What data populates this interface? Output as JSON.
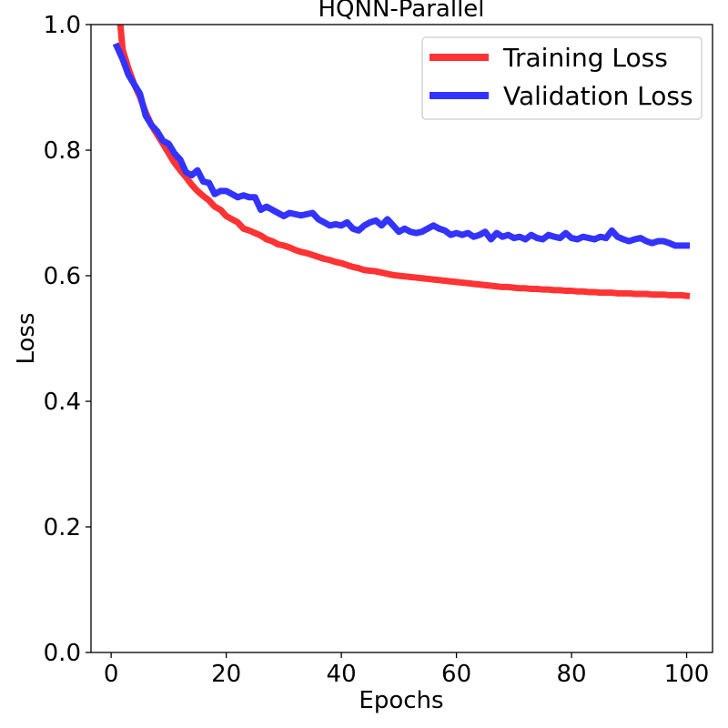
{
  "chart_data": {
    "type": "line",
    "title": "HQNN-Parallel",
    "xlabel": "Epochs",
    "ylabel": "Loss",
    "xlim": [
      -3.5,
      104.5
    ],
    "ylim": [
      0.0,
      1.0
    ],
    "xticks": [
      0,
      20,
      40,
      60,
      80,
      100
    ],
    "yticks": [
      0.0,
      0.2,
      0.4,
      0.6,
      0.8,
      1.0
    ],
    "grid": false,
    "legend_position": "top-right",
    "x": [
      1,
      2,
      3,
      4,
      5,
      6,
      7,
      8,
      9,
      10,
      11,
      12,
      13,
      14,
      15,
      16,
      17,
      18,
      19,
      20,
      21,
      22,
      23,
      24,
      25,
      26,
      27,
      28,
      29,
      30,
      31,
      32,
      33,
      34,
      35,
      36,
      37,
      38,
      39,
      40,
      41,
      42,
      43,
      44,
      45,
      46,
      47,
      48,
      49,
      50,
      51,
      52,
      53,
      54,
      55,
      56,
      57,
      58,
      59,
      60,
      61,
      62,
      63,
      64,
      65,
      66,
      67,
      68,
      69,
      70,
      71,
      72,
      73,
      74,
      75,
      76,
      77,
      78,
      79,
      80,
      81,
      82,
      83,
      84,
      85,
      86,
      87,
      88,
      89,
      90,
      91,
      92,
      93,
      94,
      95,
      96,
      97,
      98,
      99,
      100
    ],
    "series": [
      {
        "name": "Training Loss",
        "color": "#ff3333",
        "values": [
          1.06,
          0.96,
          0.93,
          0.905,
          0.885,
          0.86,
          0.84,
          0.825,
          0.81,
          0.795,
          0.78,
          0.768,
          0.757,
          0.745,
          0.735,
          0.727,
          0.72,
          0.71,
          0.705,
          0.695,
          0.69,
          0.685,
          0.675,
          0.672,
          0.668,
          0.664,
          0.658,
          0.655,
          0.65,
          0.648,
          0.645,
          0.641,
          0.638,
          0.636,
          0.633,
          0.63,
          0.627,
          0.625,
          0.622,
          0.62,
          0.617,
          0.614,
          0.612,
          0.609,
          0.608,
          0.607,
          0.605,
          0.603,
          0.601,
          0.6,
          0.599,
          0.598,
          0.597,
          0.596,
          0.595,
          0.594,
          0.593,
          0.592,
          0.591,
          0.59,
          0.589,
          0.588,
          0.587,
          0.586,
          0.585,
          0.584,
          0.583,
          0.582,
          0.582,
          0.581,
          0.58,
          0.58,
          0.579,
          0.579,
          0.578,
          0.578,
          0.577,
          0.577,
          0.576,
          0.576,
          0.575,
          0.575,
          0.574,
          0.574,
          0.573,
          0.573,
          0.573,
          0.572,
          0.572,
          0.572,
          0.571,
          0.571,
          0.571,
          0.57,
          0.57,
          0.57,
          0.569,
          0.569,
          0.569,
          0.568
        ]
      },
      {
        "name": "Validation Loss",
        "color": "#3333ff",
        "values": [
          0.965,
          0.945,
          0.92,
          0.905,
          0.89,
          0.855,
          0.84,
          0.83,
          0.815,
          0.81,
          0.795,
          0.785,
          0.765,
          0.76,
          0.768,
          0.75,
          0.748,
          0.73,
          0.735,
          0.735,
          0.73,
          0.725,
          0.728,
          0.725,
          0.725,
          0.705,
          0.71,
          0.705,
          0.7,
          0.695,
          0.7,
          0.698,
          0.696,
          0.698,
          0.7,
          0.69,
          0.685,
          0.68,
          0.682,
          0.68,
          0.685,
          0.675,
          0.672,
          0.68,
          0.685,
          0.688,
          0.68,
          0.69,
          0.68,
          0.67,
          0.675,
          0.67,
          0.668,
          0.67,
          0.675,
          0.68,
          0.675,
          0.672,
          0.665,
          0.668,
          0.665,
          0.668,
          0.662,
          0.665,
          0.67,
          0.658,
          0.668,
          0.662,
          0.665,
          0.66,
          0.662,
          0.658,
          0.665,
          0.66,
          0.658,
          0.665,
          0.662,
          0.66,
          0.668,
          0.66,
          0.658,
          0.662,
          0.66,
          0.658,
          0.662,
          0.66,
          0.672,
          0.662,
          0.658,
          0.655,
          0.658,
          0.66,
          0.655,
          0.652,
          0.655,
          0.655,
          0.652,
          0.648,
          0.648,
          0.648
        ]
      }
    ]
  }
}
